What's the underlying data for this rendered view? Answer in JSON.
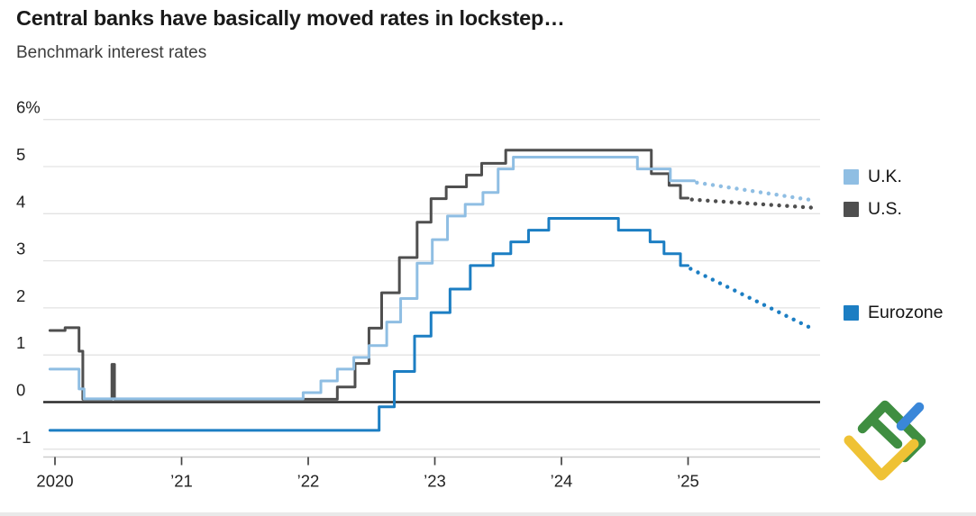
{
  "header": {
    "title": "Central banks have basically moved rates in lockstep…",
    "subtitle": "Benchmark interest rates"
  },
  "chart_data": {
    "type": "line",
    "title": "Central banks have basically moved rates in lockstep…",
    "subtitle": "Benchmark interest rates",
    "unit": "%",
    "grid": "horizontal-only",
    "legend_position": "right",
    "ylim": [
      -1.35,
      6.3
    ],
    "xlim": [
      2019.95,
      2026.0
    ],
    "y_ticks": [
      6,
      5,
      4,
      3,
      2,
      1,
      0,
      -1
    ],
    "y_tick_top_label": "6%",
    "x_ticks": [
      "2020",
      "’21",
      "’22",
      "’23",
      "’24",
      "’25"
    ],
    "x_tick_years": [
      2020,
      2021,
      2022,
      2023,
      2024,
      2025
    ],
    "colors": {
      "gridline": "#e3e3e3",
      "zero_line": "#2b2b2b",
      "axis_line": "#cccccc",
      "tick_mark": "#444444",
      "tick_label": "#222222"
    },
    "series": [
      {
        "id": "us",
        "name": "U.S.",
        "color": "#4f4f4f",
        "style": "solid-steps",
        "solid_until": 2025.0,
        "steps": [
          [
            2019.96,
            1.52
          ],
          [
            2020.08,
            1.58
          ],
          [
            2020.19,
            1.08
          ],
          [
            2020.22,
            0.06
          ],
          [
            2020.45,
            0.8
          ],
          [
            2020.47,
            0.06
          ],
          [
            2022.23,
            0.32
          ],
          [
            2022.37,
            0.82
          ],
          [
            2022.48,
            1.57
          ],
          [
            2022.58,
            2.32
          ],
          [
            2022.72,
            3.07
          ],
          [
            2022.86,
            3.82
          ],
          [
            2022.97,
            4.32
          ],
          [
            2023.09,
            4.57
          ],
          [
            2023.25,
            4.82
          ],
          [
            2023.37,
            5.07
          ],
          [
            2023.56,
            5.35
          ],
          [
            2024.71,
            4.85
          ],
          [
            2024.85,
            4.6
          ],
          [
            2024.94,
            4.33
          ]
        ]
      },
      {
        "id": "uk",
        "name": "U.K.",
        "color": "#8fbee3",
        "style": "solid-steps",
        "solid_until": 2025.05,
        "steps": [
          [
            2019.96,
            0.7
          ],
          [
            2020.19,
            0.28
          ],
          [
            2020.23,
            0.07
          ],
          [
            2021.96,
            0.2
          ],
          [
            2022.1,
            0.45
          ],
          [
            2022.23,
            0.7
          ],
          [
            2022.36,
            0.95
          ],
          [
            2022.48,
            1.2
          ],
          [
            2022.62,
            1.7
          ],
          [
            2022.73,
            2.2
          ],
          [
            2022.86,
            2.95
          ],
          [
            2022.98,
            3.45
          ],
          [
            2023.1,
            3.95
          ],
          [
            2023.24,
            4.2
          ],
          [
            2023.38,
            4.45
          ],
          [
            2023.5,
            4.95
          ],
          [
            2023.62,
            5.2
          ],
          [
            2024.6,
            4.95
          ],
          [
            2024.86,
            4.7
          ]
        ]
      },
      {
        "id": "eurozone",
        "name": "Eurozone",
        "color": "#1c7ec3",
        "style": "solid-steps",
        "solid_until": 2025.0,
        "steps": [
          [
            2019.96,
            -0.6
          ],
          [
            2022.56,
            -0.1
          ],
          [
            2022.68,
            0.65
          ],
          [
            2022.84,
            1.4
          ],
          [
            2022.97,
            1.9
          ],
          [
            2023.12,
            2.4
          ],
          [
            2023.28,
            2.9
          ],
          [
            2023.46,
            3.15
          ],
          [
            2023.6,
            3.4
          ],
          [
            2023.74,
            3.65
          ],
          [
            2023.9,
            3.9
          ],
          [
            2024.45,
            3.65
          ],
          [
            2024.7,
            3.4
          ],
          [
            2024.81,
            3.15
          ],
          [
            2024.94,
            2.9
          ]
        ]
      }
    ],
    "projections": [
      {
        "series": "U.K.",
        "style": "dotted",
        "from": [
          2025.07,
          4.66
        ],
        "to": [
          2025.95,
          4.3
        ]
      },
      {
        "series": "U.S.",
        "style": "dotted",
        "from": [
          2025.03,
          4.3
        ],
        "to": [
          2025.97,
          4.13
        ]
      },
      {
        "series": "Eurozone",
        "style": "dotted",
        "from": [
          2025.02,
          2.83
        ],
        "to": [
          2025.95,
          1.6
        ]
      }
    ]
  },
  "logo": {
    "name": "litefinance-mark",
    "green": "#3f8e41",
    "blue": "#3a87d9",
    "yellow": "#efc235"
  }
}
